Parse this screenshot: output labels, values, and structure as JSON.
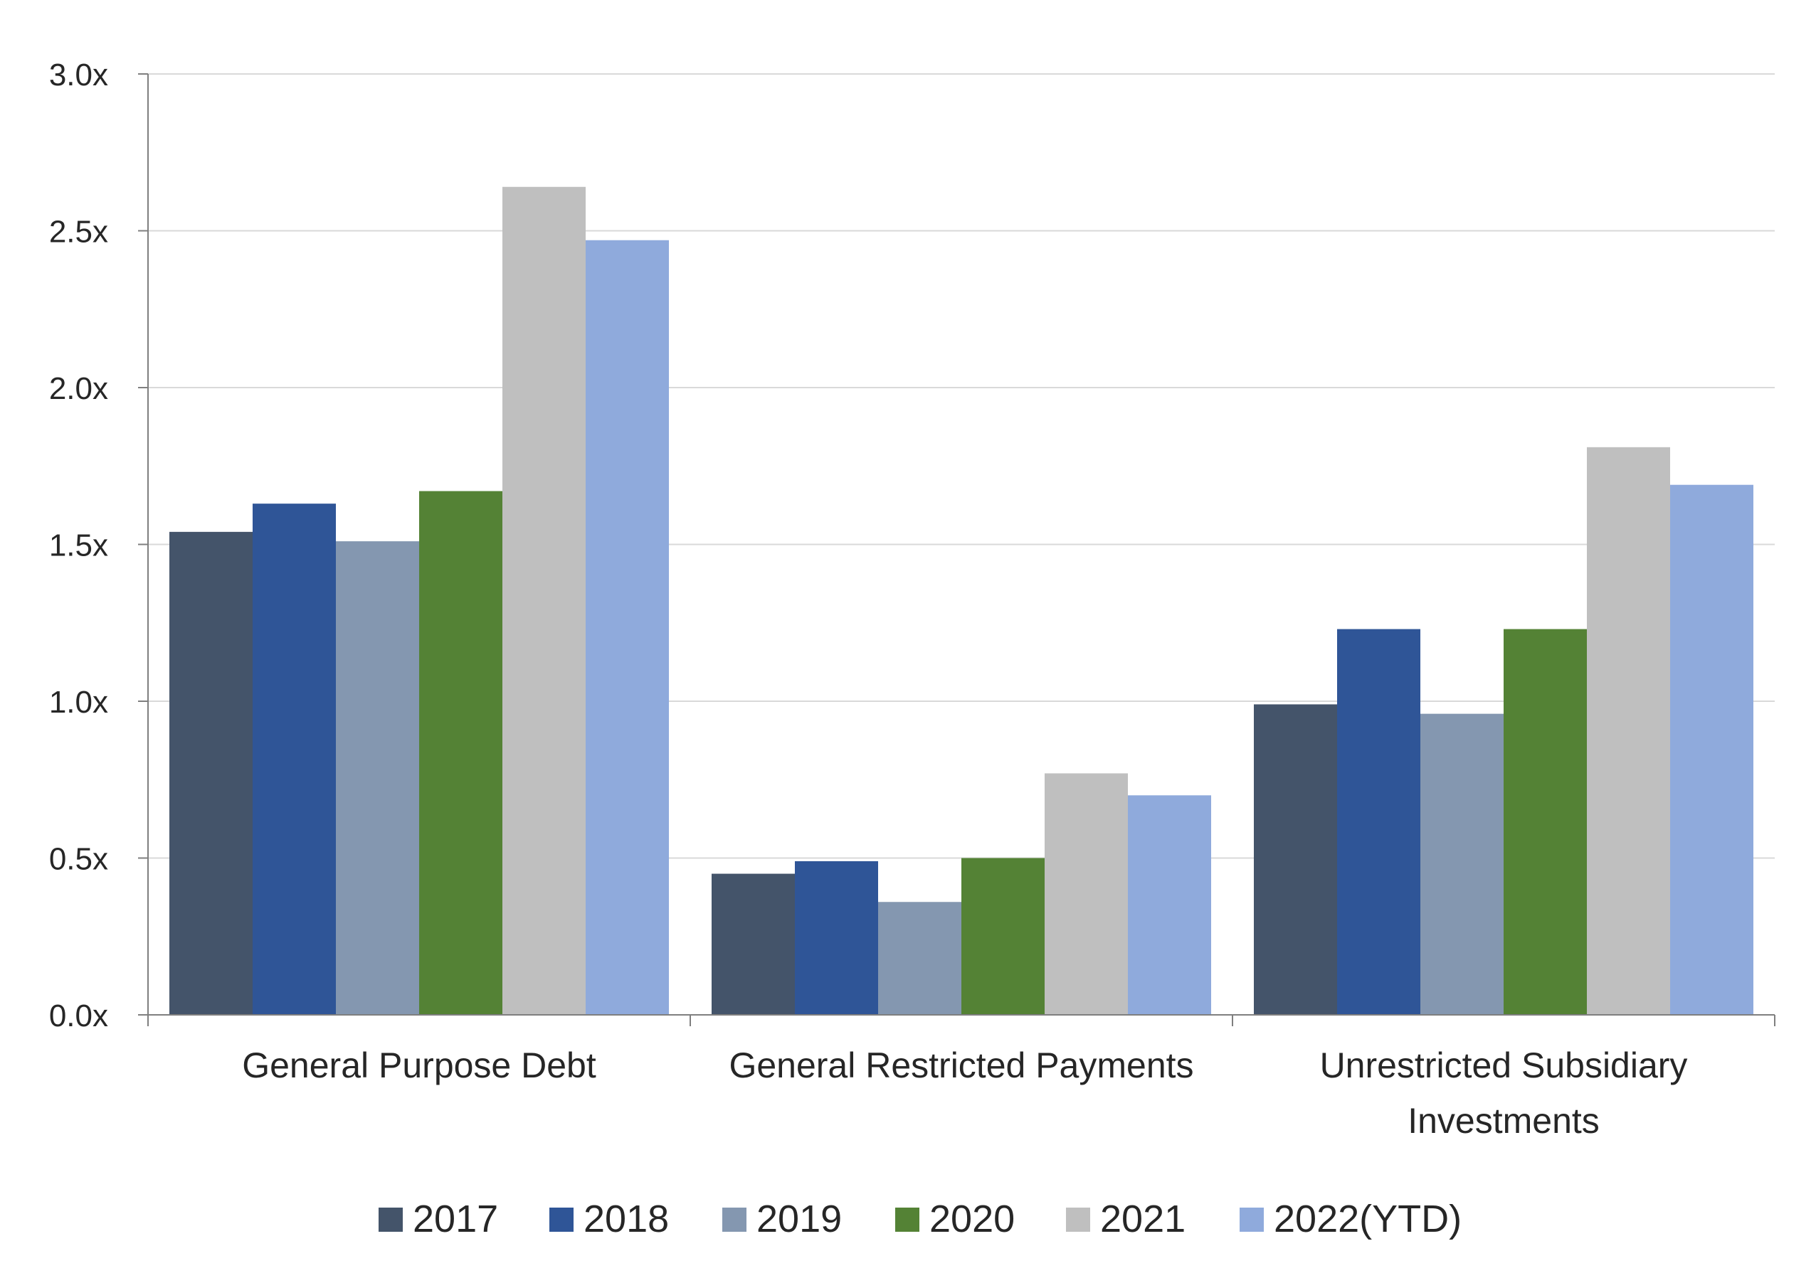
{
  "chart_data": {
    "type": "bar",
    "categories": [
      [
        "General Purpose Debt"
      ],
      [
        "General Restricted Payments"
      ],
      [
        "Unrestricted Subsidiary",
        "Investments"
      ]
    ],
    "series": [
      {
        "name": "2017",
        "color": "#44546A",
        "values": [
          1.54,
          0.45,
          0.99
        ]
      },
      {
        "name": "2018",
        "color": "#2F5597",
        "values": [
          1.63,
          0.49,
          1.23
        ]
      },
      {
        "name": "2019",
        "color": "#8497B0",
        "values": [
          1.51,
          0.36,
          0.96
        ]
      },
      {
        "name": "2020",
        "color": "#548235",
        "values": [
          1.67,
          0.5,
          1.23
        ]
      },
      {
        "name": "2021",
        "color": "#BFBFBF",
        "values": [
          2.64,
          0.77,
          1.81
        ]
      },
      {
        "name": "2022(YTD)",
        "color": "#8FAADC",
        "values": [
          2.47,
          0.7,
          1.69
        ]
      }
    ],
    "y_ticks": [
      "0.0x",
      "0.5x",
      "1.0x",
      "1.5x",
      "2.0x",
      "2.5x",
      "3.0x"
    ],
    "ylim": [
      0,
      3.0
    ],
    "grid": true,
    "legend_position": "bottom",
    "title": "",
    "xlabel": "",
    "ylabel": ""
  }
}
